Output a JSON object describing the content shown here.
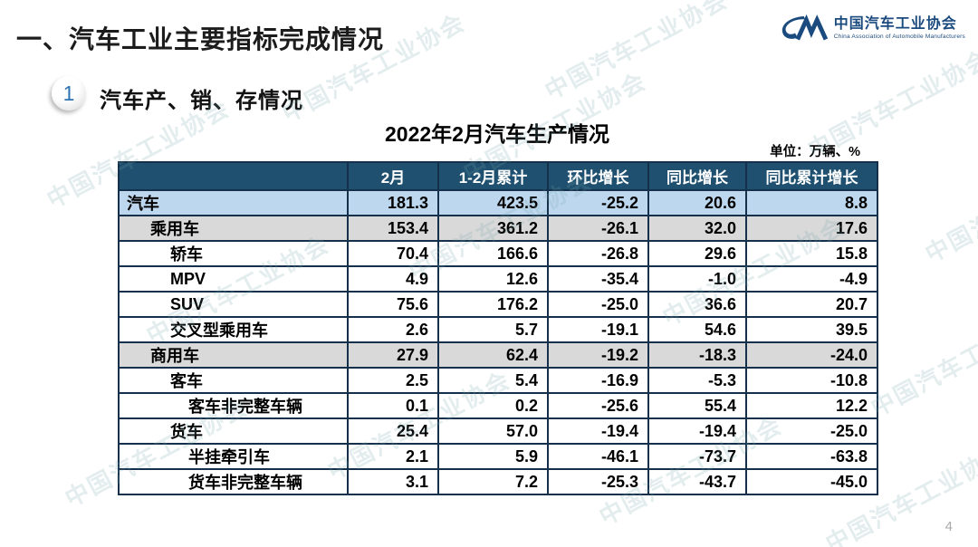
{
  "page": {
    "main_title": "一、汽车工业主要指标完成情况",
    "page_number": "4"
  },
  "logo": {
    "name_cn": "中国汽车工业协会",
    "name_en": "China Association of Automobile Manufacturers",
    "color": "#1b4a7e"
  },
  "section": {
    "badge": "1",
    "title": "汽车产、销、存情况"
  },
  "table": {
    "title": "2022年2月汽车生产情况",
    "unit": "单位：万辆、%",
    "headers": [
      "",
      "2月",
      "1-2月累计",
      "环比增长",
      "同比增长",
      "同比累计增长"
    ],
    "rows": [
      {
        "label": "汽车",
        "indent": 0,
        "bg": "blue",
        "values": [
          "181.3",
          "423.5",
          "-25.2",
          "20.6",
          "8.8"
        ]
      },
      {
        "label": "乘用车",
        "indent": 1,
        "bg": "gray",
        "values": [
          "153.4",
          "361.2",
          "-26.1",
          "32.0",
          "17.6"
        ]
      },
      {
        "label": "轿车",
        "indent": 2,
        "bg": "white",
        "values": [
          "70.4",
          "166.6",
          "-26.8",
          "29.6",
          "15.8"
        ]
      },
      {
        "label": "MPV",
        "indent": 2,
        "bg": "white",
        "values": [
          "4.9",
          "12.6",
          "-35.4",
          "-1.0",
          "-4.9"
        ]
      },
      {
        "label": "SUV",
        "indent": 2,
        "bg": "white",
        "values": [
          "75.6",
          "176.2",
          "-25.0",
          "36.6",
          "20.7"
        ]
      },
      {
        "label": "交叉型乘用车",
        "indent": 2,
        "bg": "white",
        "values": [
          "2.6",
          "5.7",
          "-19.1",
          "54.6",
          "39.5"
        ]
      },
      {
        "label": "商用车",
        "indent": 1,
        "bg": "gray",
        "values": [
          "27.9",
          "62.4",
          "-19.2",
          "-18.3",
          "-24.0"
        ]
      },
      {
        "label": "客车",
        "indent": 2,
        "bg": "white",
        "values": [
          "2.5",
          "5.4",
          "-16.9",
          "-5.3",
          "-10.8"
        ]
      },
      {
        "label": "客车非完整车辆",
        "indent": 3,
        "bg": "white",
        "values": [
          "0.1",
          "0.2",
          "-25.6",
          "55.4",
          "12.2"
        ]
      },
      {
        "label": "货车",
        "indent": 2,
        "bg": "white",
        "values": [
          "25.4",
          "57.0",
          "-19.4",
          "-19.4",
          "-25.0"
        ]
      },
      {
        "label": "半挂牵引车",
        "indent": 3,
        "bg": "white",
        "values": [
          "2.1",
          "5.9",
          "-46.1",
          "-73.7",
          "-63.8"
        ]
      },
      {
        "label": "货车非完整车辆",
        "indent": 3,
        "bg": "white",
        "values": [
          "3.1",
          "7.2",
          "-25.3",
          "-43.7",
          "-45.0"
        ]
      }
    ]
  },
  "colors": {
    "header_bg": "#1f5070",
    "row_highlight_blue": "#bdd7ee",
    "row_highlight_gray": "#d9d9d9",
    "border": "#14304a",
    "badge_number": "#2e74b5"
  },
  "watermark": {
    "text": "中国汽车工业协会"
  }
}
